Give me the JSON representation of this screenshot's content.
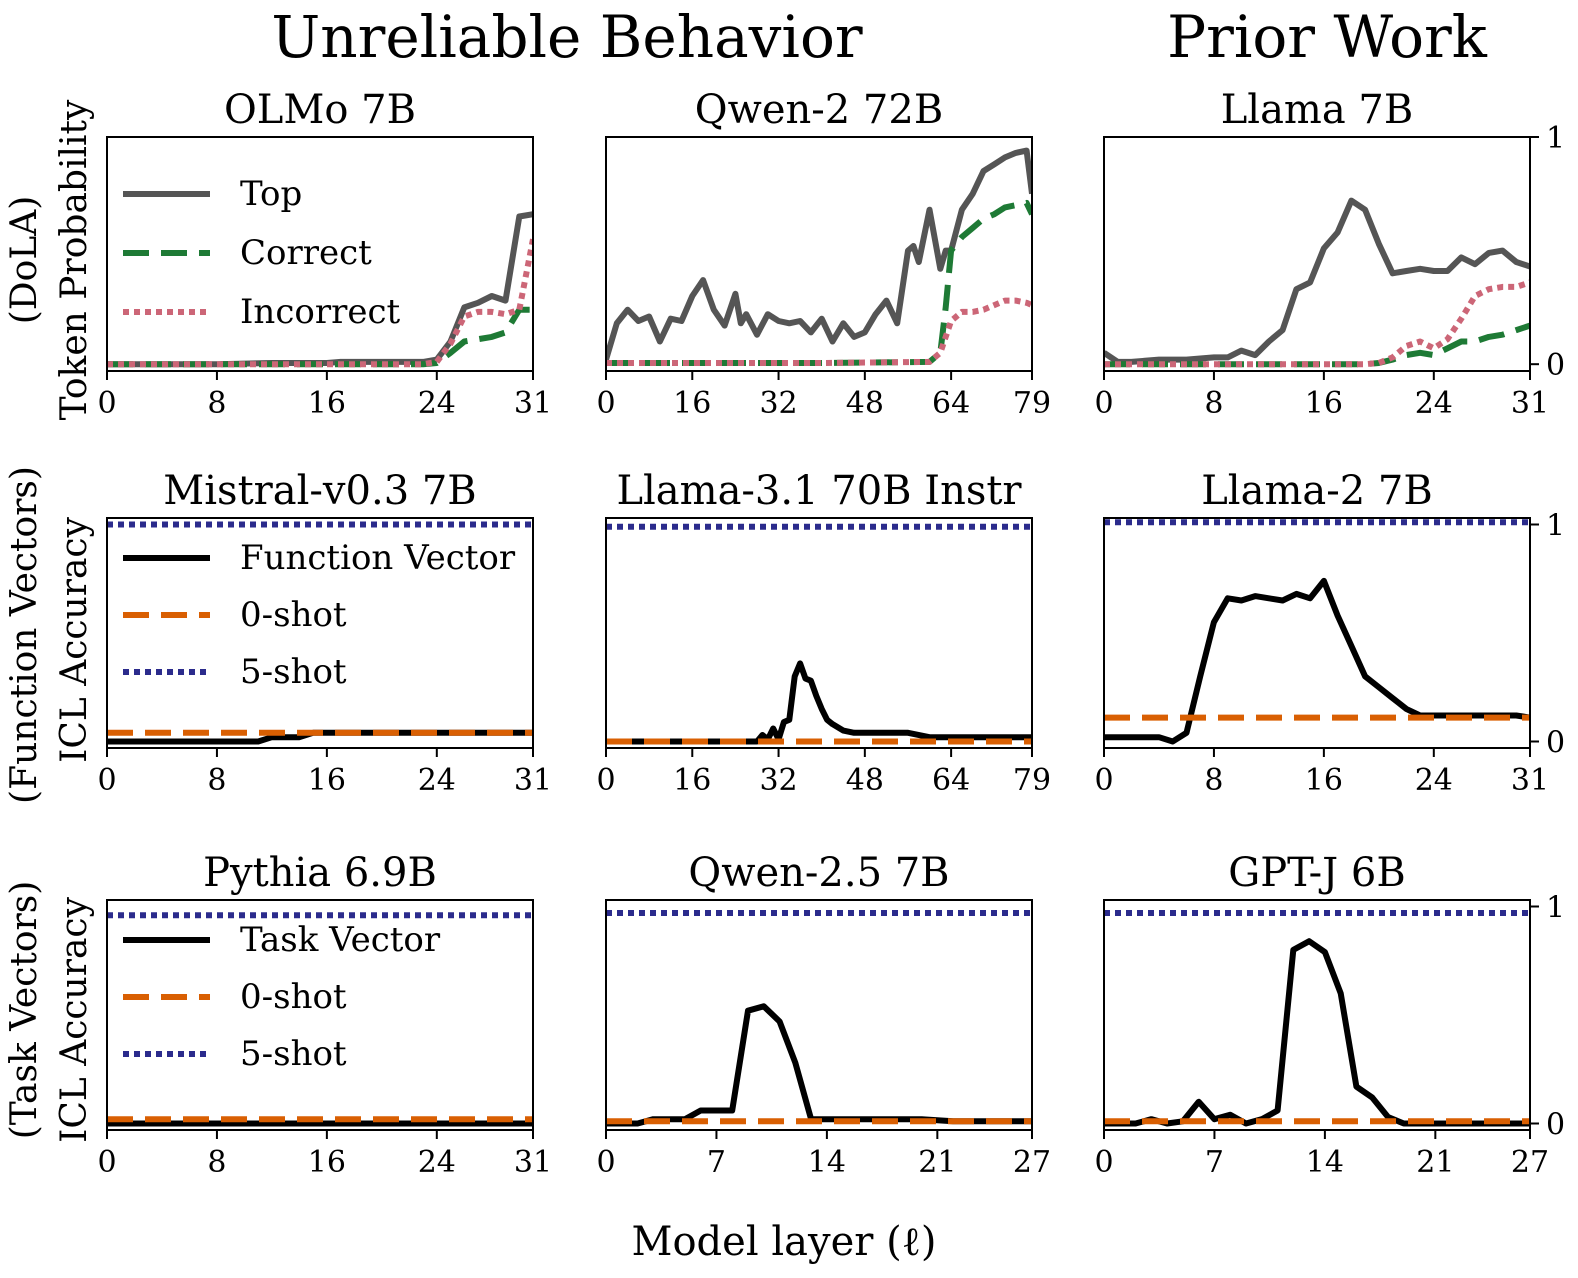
{
  "figure": {
    "supertitle_left": "Unreliable Behavior",
    "supertitle_right": "Prior Work",
    "xlabel": "Model layer (ℓ)",
    "row_ylabels": [
      [
        "(DoLA)",
        "Token Probability"
      ],
      [
        "(Function Vectors)",
        "ICL Accuracy"
      ],
      [
        "(Task Vectors)",
        "ICL Accuracy"
      ]
    ],
    "right_yticks": [
      "0",
      "1"
    ]
  },
  "chart_data": [
    {
      "type": "line",
      "row": 0,
      "col": 0,
      "title": "OLMo 7B",
      "xlim": [
        0,
        31
      ],
      "ylim": [
        -0.03,
        1.0
      ],
      "xticks": [
        0,
        8,
        16,
        24,
        31
      ],
      "legend": [
        {
          "label": "Top",
          "color": "#555555",
          "style": "solid"
        },
        {
          "label": "Correct",
          "color": "#1e7a35",
          "style": "dashed"
        },
        {
          "label": "Incorrect",
          "color": "#cc6677",
          "style": "dotted"
        }
      ],
      "series": [
        {
          "name": "Top",
          "color": "#555555",
          "style": "solid",
          "x": [
            0,
            4,
            8,
            12,
            16,
            17,
            20,
            22,
            23,
            24,
            25,
            26,
            27,
            28,
            29,
            30,
            31
          ],
          "y": [
            0,
            0,
            0,
            0.005,
            0.005,
            0.01,
            0.01,
            0.01,
            0.01,
            0.02,
            0.1,
            0.25,
            0.27,
            0.3,
            0.28,
            0.65,
            0.66
          ]
        },
        {
          "name": "Correct",
          "color": "#1e7a35",
          "style": "dashed",
          "x": [
            0,
            8,
            16,
            23,
            24,
            25,
            26,
            27,
            28,
            29,
            30,
            31
          ],
          "y": [
            0,
            0,
            0,
            0,
            0.005,
            0.05,
            0.1,
            0.11,
            0.12,
            0.14,
            0.24,
            0.24
          ]
        },
        {
          "name": "Incorrect",
          "color": "#cc6677",
          "style": "dotted",
          "x": [
            0,
            8,
            16,
            23,
            24,
            25,
            26,
            27,
            28,
            29,
            30,
            31
          ],
          "y": [
            0,
            0,
            0,
            0,
            0.01,
            0.09,
            0.21,
            0.23,
            0.23,
            0.22,
            0.24,
            0.55
          ]
        }
      ]
    },
    {
      "type": "line",
      "row": 0,
      "col": 1,
      "title": "Qwen-2 72B",
      "xlim": [
        0,
        79
      ],
      "ylim": [
        -0.03,
        1.0
      ],
      "xticks": [
        0,
        16,
        32,
        48,
        64,
        79
      ],
      "series": [
        {
          "name": "Top",
          "color": "#555555",
          "style": "solid",
          "x": [
            0,
            2,
            4,
            6,
            8,
            10,
            12,
            14,
            16,
            18,
            20,
            22,
            24,
            25,
            26,
            28,
            30,
            32,
            34,
            36,
            38,
            40,
            42,
            44,
            46,
            48,
            50,
            52,
            54,
            56,
            57,
            58,
            60,
            62,
            63,
            64,
            66,
            68,
            70,
            72,
            74,
            76,
            78,
            79
          ],
          "y": [
            0.02,
            0.18,
            0.24,
            0.19,
            0.21,
            0.1,
            0.2,
            0.19,
            0.3,
            0.37,
            0.24,
            0.17,
            0.31,
            0.18,
            0.22,
            0.13,
            0.22,
            0.19,
            0.18,
            0.19,
            0.14,
            0.2,
            0.1,
            0.18,
            0.12,
            0.14,
            0.22,
            0.28,
            0.18,
            0.5,
            0.52,
            0.45,
            0.68,
            0.42,
            0.5,
            0.5,
            0.68,
            0.75,
            0.85,
            0.88,
            0.91,
            0.93,
            0.94,
            0.75
          ]
        },
        {
          "name": "Correct",
          "color": "#1e7a35",
          "style": "dashed",
          "x": [
            0,
            20,
            40,
            60,
            62,
            63,
            64,
            66,
            68,
            70,
            72,
            74,
            76,
            78,
            79
          ],
          "y": [
            0.005,
            0.005,
            0.005,
            0.01,
            0.05,
            0.25,
            0.5,
            0.56,
            0.6,
            0.64,
            0.66,
            0.69,
            0.7,
            0.71,
            0.66
          ]
        },
        {
          "name": "Incorrect",
          "color": "#cc6677",
          "style": "dotted",
          "x": [
            0,
            20,
            40,
            60,
            62,
            64,
            66,
            68,
            70,
            72,
            74,
            76,
            78,
            79
          ],
          "y": [
            0.005,
            0.005,
            0.005,
            0.01,
            0.05,
            0.19,
            0.23,
            0.23,
            0.24,
            0.26,
            0.28,
            0.28,
            0.27,
            0.26
          ]
        }
      ]
    },
    {
      "type": "line",
      "row": 0,
      "col": 2,
      "title": "Llama 7B",
      "xlim": [
        0,
        31
      ],
      "ylim": [
        -0.03,
        1.0
      ],
      "xticks": [
        0,
        8,
        16,
        24,
        31
      ],
      "series": [
        {
          "name": "Top",
          "color": "#555555",
          "style": "solid",
          "x": [
            0,
            1,
            2,
            4,
            6,
            8,
            9,
            10,
            11,
            12,
            13,
            14,
            15,
            16,
            17,
            18,
            19,
            20,
            21,
            22,
            23,
            24,
            25,
            26,
            27,
            28,
            29,
            30,
            31
          ],
          "y": [
            0.05,
            0.01,
            0.01,
            0.02,
            0.02,
            0.03,
            0.03,
            0.06,
            0.04,
            0.1,
            0.15,
            0.33,
            0.36,
            0.51,
            0.58,
            0.72,
            0.68,
            0.53,
            0.4,
            0.41,
            0.42,
            0.41,
            0.41,
            0.47,
            0.44,
            0.49,
            0.5,
            0.45,
            0.43
          ]
        },
        {
          "name": "Correct",
          "color": "#1e7a35",
          "style": "dashed",
          "x": [
            0,
            8,
            16,
            19,
            20,
            21,
            22,
            23,
            24,
            25,
            26,
            27,
            28,
            29,
            30,
            31
          ],
          "y": [
            0,
            0,
            0,
            0,
            0.005,
            0.02,
            0.04,
            0.05,
            0.04,
            0.07,
            0.1,
            0.1,
            0.12,
            0.13,
            0.15,
            0.17
          ]
        },
        {
          "name": "Incorrect",
          "color": "#cc6677",
          "style": "dotted",
          "x": [
            0,
            8,
            16,
            19,
            20,
            21,
            22,
            23,
            24,
            25,
            26,
            27,
            28,
            29,
            30,
            31
          ],
          "y": [
            0,
            0,
            0,
            0,
            0.005,
            0.03,
            0.08,
            0.1,
            0.07,
            0.11,
            0.2,
            0.3,
            0.33,
            0.34,
            0.34,
            0.36
          ]
        }
      ]
    },
    {
      "type": "line",
      "row": 1,
      "col": 0,
      "title": "Mistral-v0.3 7B",
      "xlim": [
        0,
        31
      ],
      "ylim": [
        -0.03,
        1.03
      ],
      "xticks": [
        0,
        8,
        16,
        24,
        31
      ],
      "legend": [
        {
          "label": "Function Vector",
          "color": "#000000",
          "style": "solid"
        },
        {
          "label": "0-shot",
          "color": "#d95f02",
          "style": "dashed"
        },
        {
          "label": "5-shot",
          "color": "#2b2b8c",
          "style": "dotted"
        }
      ],
      "series": [
        {
          "name": "Function Vector",
          "color": "#000000",
          "style": "solid",
          "x": [
            0,
            5,
            10,
            11,
            12,
            13,
            14,
            15,
            16,
            20,
            24,
            28,
            31
          ],
          "y": [
            0,
            0,
            0,
            0,
            0.02,
            0.02,
            0.02,
            0.04,
            0.04,
            0.04,
            0.04,
            0.04,
            0.04
          ]
        },
        {
          "name": "0-shot",
          "color": "#d95f02",
          "style": "dashed",
          "x": [
            0,
            31
          ],
          "y": [
            0.04,
            0.04
          ]
        },
        {
          "name": "5-shot",
          "color": "#2b2b8c",
          "style": "dotted",
          "x": [
            0,
            31
          ],
          "y": [
            1.0,
            1.0
          ]
        }
      ]
    },
    {
      "type": "line",
      "row": 1,
      "col": 1,
      "title": "Llama-3.1 70B Instr",
      "xlim": [
        0,
        79
      ],
      "ylim": [
        -0.03,
        1.03
      ],
      "xticks": [
        0,
        16,
        32,
        48,
        64,
        79
      ],
      "series": [
        {
          "name": "Function Vector",
          "color": "#000000",
          "style": "solid",
          "x": [
            0,
            10,
            20,
            28,
            29,
            30,
            31,
            32,
            33,
            34,
            35,
            36,
            37,
            38,
            39,
            40,
            41,
            42,
            44,
            46,
            48,
            52,
            56,
            60,
            64,
            70,
            76,
            79
          ],
          "y": [
            0,
            0,
            0,
            0,
            0.03,
            0.01,
            0.06,
            0.01,
            0.09,
            0.1,
            0.3,
            0.36,
            0.29,
            0.28,
            0.21,
            0.15,
            0.1,
            0.08,
            0.05,
            0.04,
            0.04,
            0.04,
            0.04,
            0.02,
            0.02,
            0.02,
            0.02,
            0.02
          ]
        },
        {
          "name": "0-shot",
          "color": "#d95f02",
          "style": "dashed",
          "x": [
            0,
            79
          ],
          "y": [
            0,
            0
          ]
        },
        {
          "name": "5-shot",
          "color": "#2b2b8c",
          "style": "dotted",
          "x": [
            0,
            79
          ],
          "y": [
            0.99,
            0.99
          ]
        }
      ]
    },
    {
      "type": "line",
      "row": 1,
      "col": 2,
      "title": "Llama-2 7B",
      "xlim": [
        0,
        31
      ],
      "ylim": [
        -0.03,
        1.03
      ],
      "xticks": [
        0,
        8,
        16,
        24,
        31
      ],
      "series": [
        {
          "name": "Function Vector",
          "color": "#000000",
          "style": "solid",
          "x": [
            0,
            2,
            4,
            5,
            6,
            7,
            8,
            9,
            10,
            11,
            12,
            13,
            14,
            15,
            16,
            17,
            18,
            19,
            20,
            21,
            22,
            23,
            24,
            26,
            28,
            30,
            31
          ],
          "y": [
            0.02,
            0.02,
            0.02,
            0,
            0.04,
            0.3,
            0.55,
            0.66,
            0.65,
            0.67,
            0.66,
            0.65,
            0.68,
            0.66,
            0.74,
            0.58,
            0.44,
            0.3,
            0.25,
            0.2,
            0.15,
            0.12,
            0.12,
            0.12,
            0.12,
            0.12,
            0.11
          ]
        },
        {
          "name": "0-shot",
          "color": "#d95f02",
          "style": "dashed",
          "x": [
            0,
            31
          ],
          "y": [
            0.11,
            0.11
          ]
        },
        {
          "name": "5-shot",
          "color": "#2b2b8c",
          "style": "dotted",
          "x": [
            0,
            31
          ],
          "y": [
            1.01,
            1.01
          ]
        }
      ]
    },
    {
      "type": "line",
      "row": 2,
      "col": 0,
      "title": "Pythia 6.9B",
      "xlim": [
        0,
        31
      ],
      "ylim": [
        -0.03,
        1.03
      ],
      "xticks": [
        0,
        8,
        16,
        24,
        31
      ],
      "legend": [
        {
          "label": "Task Vector",
          "color": "#000000",
          "style": "solid"
        },
        {
          "label": "0-shot",
          "color": "#d95f02",
          "style": "dashed"
        },
        {
          "label": "5-shot",
          "color": "#2b2b8c",
          "style": "dotted"
        }
      ],
      "series": [
        {
          "name": "Task Vector",
          "color": "#000000",
          "style": "solid",
          "x": [
            0,
            31
          ],
          "y": [
            0,
            0
          ]
        },
        {
          "name": "0-shot",
          "color": "#d95f02",
          "style": "dashed",
          "x": [
            0,
            31
          ],
          "y": [
            0.02,
            0.02
          ]
        },
        {
          "name": "5-shot",
          "color": "#2b2b8c",
          "style": "dotted",
          "x": [
            0,
            31
          ],
          "y": [
            0.96,
            0.96
          ]
        }
      ]
    },
    {
      "type": "line",
      "row": 2,
      "col": 1,
      "title": "Qwen-2.5 7B",
      "xlim": [
        0,
        27
      ],
      "ylim": [
        -0.03,
        1.03
      ],
      "xticks": [
        0,
        7,
        14,
        21,
        27
      ],
      "series": [
        {
          "name": "Task Vector",
          "color": "#000000",
          "style": "solid",
          "x": [
            0,
            1,
            2,
            3,
            4,
            5,
            6,
            7,
            8,
            9,
            10,
            11,
            12,
            13,
            14,
            16,
            18,
            20,
            22,
            24,
            27
          ],
          "y": [
            0,
            0,
            0,
            0.02,
            0.02,
            0.02,
            0.06,
            0.06,
            0.06,
            0.52,
            0.54,
            0.47,
            0.28,
            0.02,
            0.02,
            0.02,
            0.02,
            0.02,
            0.01,
            0.01,
            0.01
          ]
        },
        {
          "name": "0-shot",
          "color": "#d95f02",
          "style": "dashed",
          "x": [
            0,
            27
          ],
          "y": [
            0.01,
            0.01
          ]
        },
        {
          "name": "5-shot",
          "color": "#2b2b8c",
          "style": "dotted",
          "x": [
            0,
            27
          ],
          "y": [
            0.97,
            0.97
          ]
        }
      ]
    },
    {
      "type": "line",
      "row": 2,
      "col": 2,
      "title": "GPT-J 6B",
      "xlim": [
        0,
        27
      ],
      "ylim": [
        -0.03,
        1.03
      ],
      "xticks": [
        0,
        7,
        14,
        21,
        27
      ],
      "series": [
        {
          "name": "Task Vector",
          "color": "#000000",
          "style": "solid",
          "x": [
            0,
            1,
            2,
            3,
            4,
            5,
            6,
            7,
            8,
            9,
            10,
            11,
            12,
            13,
            14,
            15,
            16,
            17,
            18,
            19,
            20,
            22,
            24,
            27
          ],
          "y": [
            0,
            0,
            0,
            0.02,
            0,
            0.01,
            0.1,
            0.02,
            0.04,
            0,
            0.02,
            0.06,
            0.8,
            0.84,
            0.79,
            0.6,
            0.17,
            0.12,
            0.03,
            0,
            0,
            0,
            0,
            0
          ]
        },
        {
          "name": "0-shot",
          "color": "#d95f02",
          "style": "dashed",
          "x": [
            0,
            27
          ],
          "y": [
            0.01,
            0.01
          ]
        },
        {
          "name": "5-shot",
          "color": "#2b2b8c",
          "style": "dotted",
          "x": [
            0,
            27
          ],
          "y": [
            0.97,
            0.97
          ]
        }
      ]
    }
  ]
}
